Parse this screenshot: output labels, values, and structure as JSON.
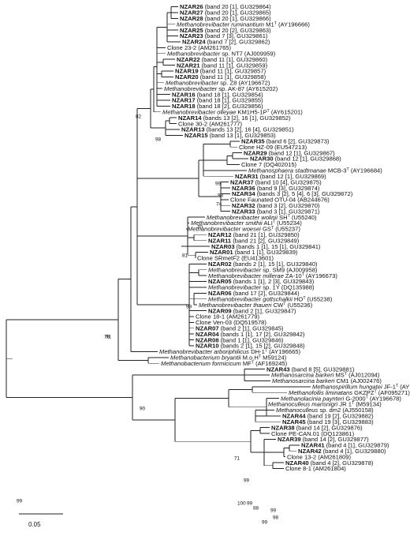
{
  "tips": [
    {
      "bold": "NZAR26",
      "rest": " (band 20 [1], GU329864)"
    },
    {
      "bold": "NZAR27",
      "rest": " (band 20 [1], GU329865)"
    },
    {
      "bold": "NZAR28",
      "rest": " (band 20 [1], GU329866)"
    },
    {
      "italic": "Methanobrevibacter ruminantium",
      "rest": " M1",
      "sup": "T",
      "rest2": " (AY196666)"
    },
    {
      "bold": "NZAR25",
      "rest": " (band 20 [2], GU329863)"
    },
    {
      "bold": "NZAR23",
      "rest": " (band 7 [3], GU329861)"
    },
    {
      "bold": "NZAR24",
      "rest": " (band 7 [2], GU329862)"
    },
    {
      "text": "Clone 23-2 (AM261765)"
    },
    {
      "italic": "Methanobrevibacter",
      "rest": " sp. NT7 (AJ009959)"
    },
    {
      "bold": "NZAR22",
      "rest": " (band 11 [1], GU329860)"
    },
    {
      "bold": "NZAR21",
      "rest": " (band 11 [1], GU329859)"
    },
    {
      "bold": "NZAR19",
      "rest": " (band 11 [1], GU329857)"
    },
    {
      "bold": "NZAR20",
      "rest": " (band 11 [1], GU329858)"
    },
    {
      "italic": "Methanobrevibacter",
      "rest": " sp. Z8 (AY196672)"
    },
    {
      "italic": "Methanobrevibacter",
      "rest": " sp. AK-87 (AY615202)"
    },
    {
      "bold": "NZAR16",
      "rest": " (band 18 [1], GU329854)"
    },
    {
      "bold": "NZAR17",
      "rest": " (band 18 [1], GU329855)"
    },
    {
      "bold": "NZAR18",
      "rest": " (band 18 [2], GU329856)"
    },
    {
      "italic": "Methanobrevibacter olleyae",
      "rest": " KM1H5-1P",
      "sup": "T",
      "rest2": " (AY615201)"
    },
    {
      "bold": "NZAR14",
      "rest": " (bands 13 [2], 16 [1], GU329852)"
    },
    {
      "text": "Clone 30-2 (AM261777)"
    },
    {
      "bold": "NZAR13",
      "rest": " (bands 13 [2], 16 [4], GU329851)"
    },
    {
      "bold": "NZAR15",
      "rest": " (band 13 [1], GU329853)"
    },
    {
      "bold": "NZAR35",
      "rest": " (band 6 [2], GU329873)"
    },
    {
      "text": "Clone HZ-09 (EU547213)"
    },
    {
      "bold": "NZAR29",
      "rest": " (band 12 [1], GU329867)"
    },
    {
      "bold": "NZAR30",
      "rest": " (band 12 [1], GU329868)"
    },
    {
      "text": "Clone 7 (DQ402015)"
    },
    {
      "italic": "Methanosphaera stadtmanae",
      "rest": " MCB-3",
      "sup": "T",
      "rest2": " (AY196684)"
    },
    {
      "bold": "NZAR31",
      "rest": " (band 12 [1], GU329869)"
    },
    {
      "bold": "NZAR37",
      "rest": " (band 10 [4], GU329875)"
    },
    {
      "bold": "NZAR36",
      "rest": " (band 9 [3], GU329874)"
    },
    {
      "bold": "NZAR34",
      "rest": " (bands 3 [2], 5 [4], 6 [3], GU329872)"
    },
    {
      "text": "Clone Faunated OTU-04 (AB244676)"
    },
    {
      "bold": "NZAR32",
      "rest": " (band 3 [2], GU329870)"
    },
    {
      "bold": "NZAR33",
      "rest": " (band 3 [1], GU329871)"
    },
    {
      "italic": "Methanobrevibacter wolinii",
      "rest": " SH",
      "sup": "T",
      "rest2": " (U55240)"
    },
    {
      "italic": "Methanobrevibacter smithii",
      "rest": " ALI",
      "sup": "T",
      "rest2": " (U55234)"
    },
    {
      "italic": "Methanobrevibacter woesei",
      "rest": " GS",
      "sup": "T",
      "rest2": " (U55237)"
    },
    {
      "bold": "NZAR12",
      "rest": " (band 21 [1], GU329850)"
    },
    {
      "bold": "NZAR11",
      "rest": " (band 21 [2], GU329849)"
    },
    {
      "bold": "NZAR03",
      "rest": " (bands 1 [1], 15 [1], GU329841)"
    },
    {
      "bold": "NZAR01",
      "rest": " (band 1 [1], GU329839)"
    },
    {
      "text": "Clone SRmetF2 (EU413601)"
    },
    {
      "bold": "NZAR02",
      "rest": " (bands 2 [1], 15 [1], GU329840)"
    },
    {
      "italic": "Methanobrevibacter",
      "rest": " sp. SM9 (AJ009958)"
    },
    {
      "italic": "Methanobrevibacter millerae",
      "rest": " ZA-10",
      "sup": "T",
      "rest2": " (AY196673)"
    },
    {
      "bold": "NZAR05",
      "rest": " (bands 1 [1], 2 [3], GU329843)"
    },
    {
      "italic": "Methanobrevibacter",
      "rest": " sp. 1Y (DQ135988)"
    },
    {
      "bold": "NZAR06",
      "rest": " (band 17 [2], GU329844)"
    },
    {
      "italic": "Methanobrevibacter gottschalkii",
      "rest": " HO",
      "sup": "T",
      "rest2": " (U55238)"
    },
    {
      "italic": "Methanobrevibacter thaueri",
      "rest": " CW",
      "sup": "T",
      "rest2": " (U55236)"
    },
    {
      "bold": "NZAR09",
      "rest": " (band 2 [1], GU329847)"
    },
    {
      "text": "Clone 18-1 (AM261779)"
    },
    {
      "text": "Clone Ven-03 (DQ519578)"
    },
    {
      "bold": "NZAR07",
      "rest": " (band 2 [1], GU329845)"
    },
    {
      "bold": "NZAR04",
      "rest": " (bands 1 [1], 17 [2], GU329842)"
    },
    {
      "bold": "NZAR08",
      "rest": " (band 1 [1], GU329846)"
    },
    {
      "bold": "NZAR10",
      "rest": " (bands 2 [1], 15 [2], GU329848)"
    },
    {
      "italic": "Methanobrevibacter arboriphilicus",
      "rest": " DH-1",
      "sup": "T",
      "rest2": " (AY196665)"
    },
    {
      "italic": "Methanobacterium bryantii",
      "rest": " M.o.H",
      "sup": "T",
      "rest2": " M59124)"
    },
    {
      "italic": "Methanobacterium formicicum",
      "rest": " MF",
      "sup": "T",
      "rest2": " (AF169245)"
    },
    {
      "bold": "NZAR43",
      "rest": " (band 8 [5], GU329881)"
    },
    {
      "italic": "Methanosarcina barkeri",
      "rest": " MS",
      "sup": "T",
      "rest2": " (AJ012094)"
    },
    {
      "italic": "Methanosarcina barkeri",
      "rest": " CM1 (AJ002476)"
    },
    {
      "italic": "Methanospirillum hungatei",
      "rest": " JF-1",
      "sup": "T",
      "rest2": " (AY196683)"
    },
    {
      "italic": "Methanofollis liminatans",
      "rest": " GKZPZ",
      "sup": "T",
      "rest2": " (AF095271)"
    },
    {
      "italic": "Methanolacinia paynteri",
      "rest": " G-2000",
      "sup": "T",
      "rest2": " (AY196678)"
    },
    {
      "italic": "Methanoculleus marisnigri",
      "rest": " JR 1",
      "sup": "T",
      "rest2": " (M59134)"
    },
    {
      "italic": "Methanoculleus",
      "rest": " sp. dm2 (AJ550158)"
    },
    {
      "bold": "NZAR44",
      "rest": " (band 19 [2], GU329882)"
    },
    {
      "bold": "NZAR45",
      "rest": " (band 19 [3], GU329883)"
    },
    {
      "bold": "NZAR38",
      "rest": " (band 14 [2], GU329876)"
    },
    {
      "text": "Clone PE-CAN.01 (DQ123861)"
    },
    {
      "bold": "NZAR39",
      "rest": " (band 14 [2], GU329877)"
    },
    {
      "bold": "NZAR41",
      "rest": " (band 4 [1], GU329879)"
    },
    {
      "bold": "NZAR42",
      "rest": " (band 4 [1], GU329880)"
    },
    {
      "text": "Clone 13-2 (AM261809)"
    },
    {
      "bold": "NZAR40",
      "rest": " (band 4 [2], GU329878)"
    },
    {
      "text": "Clone 8-1 (AM261804)"
    }
  ],
  "bootstrap_labels": [
    "82",
    "98",
    "99",
    "98",
    "74",
    "70",
    "81",
    "99",
    "79",
    "90",
    "91",
    "71",
    "99",
    "99",
    "99",
    "98",
    "99",
    "99",
    "88",
    "100"
  ],
  "scale_bar": {
    "label": "0.05"
  }
}
